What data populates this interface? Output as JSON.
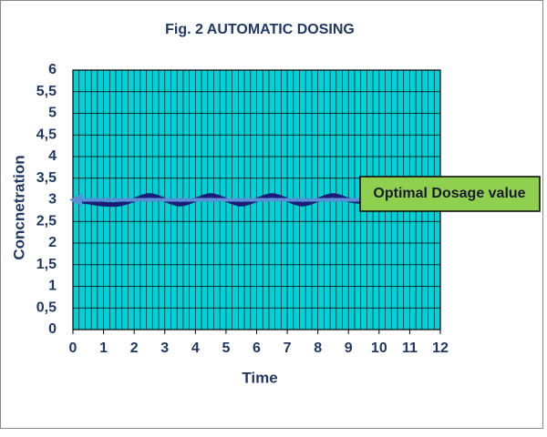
{
  "chart_data": {
    "type": "line",
    "title": "Fig. 2 AUTOMATIC DOSING",
    "x_label": "Time",
    "y_label": "Concnetration",
    "x": [
      0,
      0.5,
      1,
      1.5,
      2,
      2.5,
      3,
      3.5,
      4,
      4.5,
      5,
      5.5,
      6,
      6.5,
      7,
      7.5,
      8,
      8.5,
      9,
      9.5
    ],
    "series": [
      {
        "color": "#1c1c78",
        "values": [
          3,
          2.95,
          2.9,
          2.9,
          3,
          3.1,
          3,
          2.9,
          3,
          3.1,
          3,
          2.9,
          3,
          3.1,
          3,
          2.9,
          3,
          3.1,
          3,
          2.95
        ]
      }
    ],
    "xlim": [
      0,
      12
    ],
    "xticks": [
      0,
      1,
      2,
      3,
      4,
      5,
      6,
      7,
      8,
      9,
      10,
      11,
      12
    ],
    "ylim": [
      0,
      6
    ],
    "yticks": [
      0,
      {
        "value": 0.5,
        "label": "0,5"
      },
      1,
      {
        "value": 1.5,
        "label": "1,5"
      },
      2,
      {
        "value": 2.5,
        "label": "2,5"
      },
      3,
      {
        "value": 3.5,
        "label": "3,5"
      },
      4,
      {
        "value": 4.5,
        "label": "4,5"
      },
      5,
      {
        "value": 5.5,
        "label": "5,5"
      },
      6
    ],
    "x_grid_step": 0.2,
    "grid": true,
    "plot_background": "#00d2da",
    "reference_line": {
      "value": 3,
      "label": "Optimal Dosage value",
      "color": "#5b8fd6",
      "box_color": "#8fd14f"
    }
  }
}
